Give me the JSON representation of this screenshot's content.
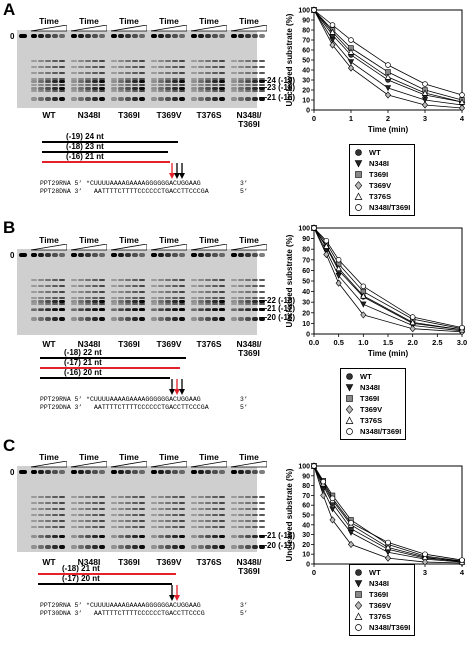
{
  "figure": {
    "gel_header": "Time",
    "zero_label": "0",
    "panels": [
      {
        "label": "A",
        "lanes": [
          "WT",
          "N348I",
          "T369I",
          "T369V",
          "T376S",
          "N348I/\nT369I"
        ],
        "markers": [
          "24 (-19)",
          "23 (-18)",
          "21 (-16)"
        ],
        "nt_labels": [
          "(-19) 24 nt",
          "(-18) 23 nt",
          "(-16) 21 nt"
        ],
        "seq_top_label": "PPT29RNA 5’",
        "seq_top": "*CUUUUAAAAGAAAAGGGGGGACUGGAAG",
        "seq_top_end": "3’",
        "seq_bot_label": "PPT28DNA 3’",
        "seq_bot": "  AATTTTCTTTTCCCCCCTGACCTTCCCGA",
        "seq_bot_end": "5’",
        "chart": {
          "ylabel": "Uncleaved substrate (%)",
          "xlabel": "Time (min)",
          "xlim": [
            0,
            4
          ],
          "ylim": [
            0,
            100
          ],
          "xticks": [
            0,
            1,
            2,
            3,
            4
          ],
          "yticks": [
            0,
            10,
            20,
            30,
            40,
            50,
            60,
            70,
            80,
            90,
            100
          ]
        },
        "legend": [
          "WT",
          "N348I",
          "T369I",
          "T369V",
          "T376S",
          "N348I/T369I"
        ]
      },
      {
        "label": "B",
        "lanes": [
          "WT",
          "N348I",
          "T369I",
          "T369V",
          "T376S",
          "N348I/\nT369I"
        ],
        "markers": [
          "22 (-18)",
          "21 (-17)",
          "20 (-16)"
        ],
        "nt_labels": [
          "(-18) 22 nt",
          "(-17) 21 nt",
          "(-16) 20 nt"
        ],
        "seq_top_label": "PPT29RNA 5’",
        "seq_top": "*CUUUUAAAAGAAAAGGGGGGACUGGAAG",
        "seq_top_end": "3’",
        "seq_bot_label": "PPT29DNA 3’",
        "seq_bot": "  AATTTTCTTTTCCCCCCTGACCTTCCCGA",
        "seq_bot_end": "5’",
        "chart": {
          "ylabel": "Uncleaved substrate (%)",
          "xlabel": "Time (min)",
          "xlim": [
            0,
            3
          ],
          "ylim": [
            0,
            100
          ],
          "xticks": [
            0.0,
            0.5,
            1.0,
            1.5,
            2.0,
            2.5,
            3.0
          ],
          "yticks": [
            0,
            10,
            20,
            30,
            40,
            50,
            60,
            70,
            80,
            90,
            100
          ]
        },
        "legend": [
          "WT",
          "N348I",
          "T369I",
          "T369V",
          "T376S",
          "N348I/T369I"
        ]
      },
      {
        "label": "C",
        "lanes": [
          "WT",
          "N348I",
          "T369I",
          "T369V",
          "T376S",
          "N348I/\nT369I"
        ],
        "markers": [
          "21 (-18)",
          "20 (-17)"
        ],
        "nt_labels": [
          "(-18) 21 nt",
          "(-17) 20 nt"
        ],
        "seq_top_label": "PPT29RNA 5’",
        "seq_top": "*CUUUUAAAAGAAAAGGGGGGACUGGAAG",
        "seq_top_end": "3’",
        "seq_bot_label": "PPT30DNA 3’",
        "seq_bot": "  AATTTTCTTTTCCCCCCTGACCTTCCCG",
        "seq_bot_end": "5’",
        "chart": {
          "ylabel": "Uncleaved substrate (%)",
          "xlabel": "Time (min)",
          "xlim": [
            0,
            4
          ],
          "ylim": [
            0,
            100
          ],
          "xticks": [
            0,
            1,
            2,
            3,
            4
          ],
          "yticks": [
            0,
            10,
            20,
            30,
            40,
            50,
            60,
            70,
            80,
            90,
            100
          ]
        },
        "legend": [
          "WT",
          "N348I",
          "T369I",
          "T369V",
          "T376S",
          "N348I/T369I"
        ]
      }
    ],
    "colors": {
      "highlight": "#e4202a",
      "gel_bg": "#cfcfcf",
      "ink": "#000000"
    }
  },
  "chart_data": [
    {
      "type": "scatter",
      "xlabel": "Time (min)",
      "ylabel": "Uncleaved substrate (%)",
      "xlim": [
        0,
        4
      ],
      "ylim": [
        0,
        100
      ],
      "x": [
        0,
        0.5,
        1,
        2,
        3,
        4
      ],
      "series": [
        {
          "name": "WT",
          "values": [
            100,
            75,
            55,
            30,
            15,
            8
          ]
        },
        {
          "name": "N348I",
          "values": [
            100,
            70,
            48,
            22,
            10,
            5
          ]
        },
        {
          "name": "T369I",
          "values": [
            100,
            80,
            62,
            38,
            20,
            10
          ]
        },
        {
          "name": "T369V",
          "values": [
            100,
            65,
            42,
            15,
            5,
            2
          ]
        },
        {
          "name": "T376S",
          "values": [
            100,
            78,
            58,
            33,
            17,
            8
          ]
        },
        {
          "name": "N348I/T369I",
          "values": [
            100,
            85,
            70,
            45,
            26,
            15
          ]
        }
      ]
    },
    {
      "type": "scatter",
      "xlabel": "Time (min)",
      "ylabel": "Uncleaved substrate (%)",
      "xlim": [
        0,
        3
      ],
      "ylim": [
        0,
        100
      ],
      "x": [
        0,
        0.25,
        0.5,
        1,
        2,
        3
      ],
      "series": [
        {
          "name": "WT",
          "values": [
            100,
            82,
            60,
            35,
            10,
            4
          ]
        },
        {
          "name": "N348I",
          "values": [
            100,
            78,
            55,
            28,
            8,
            3
          ]
        },
        {
          "name": "T369I",
          "values": [
            100,
            86,
            66,
            40,
            14,
            5
          ]
        },
        {
          "name": "T369V",
          "values": [
            100,
            75,
            48,
            18,
            5,
            2
          ]
        },
        {
          "name": "T376S",
          "values": [
            100,
            83,
            62,
            36,
            11,
            4
          ]
        },
        {
          "name": "N348I/T369I",
          "values": [
            100,
            88,
            70,
            45,
            16,
            6
          ]
        }
      ]
    },
    {
      "type": "scatter",
      "xlabel": "Time (min)",
      "ylabel": "Uncleaved substrate (%)",
      "xlim": [
        0,
        4
      ],
      "ylim": [
        0,
        100
      ],
      "x": [
        0,
        0.25,
        0.5,
        1,
        2,
        3,
        4
      ],
      "series": [
        {
          "name": "WT",
          "values": [
            100,
            80,
            62,
            36,
            15,
            6,
            3
          ]
        },
        {
          "name": "N348I",
          "values": [
            100,
            76,
            56,
            32,
            12,
            5,
            2
          ]
        },
        {
          "name": "T369I",
          "values": [
            100,
            85,
            70,
            45,
            20,
            8,
            3
          ]
        },
        {
          "name": "T369V",
          "values": [
            100,
            70,
            45,
            20,
            6,
            2,
            1
          ]
        },
        {
          "name": "T376S",
          "values": [
            100,
            82,
            65,
            40,
            17,
            7,
            2
          ]
        },
        {
          "name": "N348I/T369I",
          "values": [
            100,
            84,
            67,
            42,
            22,
            10,
            4
          ]
        }
      ]
    }
  ]
}
